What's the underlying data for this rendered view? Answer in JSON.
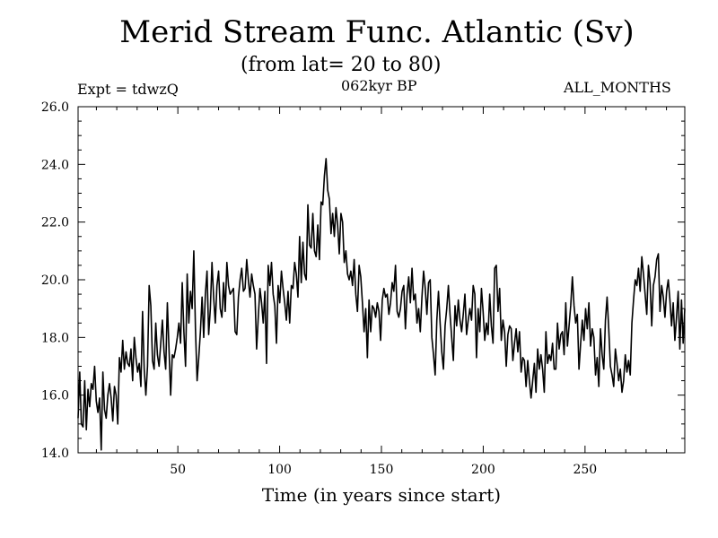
{
  "chart_data": {
    "type": "line",
    "title": "Merid Stream Func. Atlantic (Sv)",
    "subtitle": "(from lat= 20 to 80)",
    "experiment": "Expt = tdwzQ",
    "period": "062kyr BP",
    "months": "ALL_MONTHS",
    "xlabel": "Time (in years since start)",
    "ylabel": "",
    "xlim": [
      1,
      299
    ],
    "ylim": [
      14.0,
      26.0
    ],
    "x_ticks": [
      50,
      100,
      150,
      200,
      250
    ],
    "x_tick_labels": [
      "50",
      "100",
      "150",
      "200",
      "250"
    ],
    "y_ticks": [
      14,
      16,
      18,
      20,
      22,
      24,
      26
    ],
    "y_tick_labels": [
      "14.0",
      "16.0",
      "18.0",
      "20.0",
      "22.0",
      "24.0",
      "26.0"
    ],
    "series": [
      {
        "name": "Merid Stream Func. Atlantic",
        "values": [
          15.2,
          16.8,
          15.0,
          14.9,
          16.5,
          14.8,
          16.2,
          15.6,
          16.4,
          16.2,
          17.0,
          15.8,
          15.4,
          15.9,
          14.1,
          16.8,
          15.5,
          15.2,
          16.0,
          16.4,
          15.9,
          15.1,
          16.3,
          16.0,
          15.0,
          17.3,
          16.8,
          17.9,
          16.9,
          17.5,
          17.1,
          17.0,
          17.6,
          16.5,
          18.0,
          17.3,
          16.8,
          17.1,
          16.3,
          18.9,
          16.9,
          16.0,
          17.0,
          19.8,
          19.1,
          17.2,
          16.9,
          18.5,
          17.4,
          17.0,
          17.8,
          18.6,
          17.5,
          16.9,
          19.2,
          17.6,
          16.0,
          17.4,
          17.3,
          17.6,
          18.0,
          18.5,
          17.8,
          19.9,
          18.2,
          17.0,
          20.2,
          18.5,
          19.6,
          19.0,
          21.0,
          18.3,
          16.5,
          17.3,
          18.2,
          19.4,
          18.0,
          19.5,
          20.3,
          18.1,
          19.0,
          20.6,
          19.4,
          18.5,
          19.8,
          20.3,
          19.0,
          18.7,
          19.9,
          18.9,
          20.6,
          19.8,
          19.5,
          19.6,
          19.7,
          18.2,
          18.1,
          19.4,
          20.0,
          20.4,
          19.6,
          19.7,
          20.7,
          20.0,
          19.4,
          20.2,
          19.8,
          19.5,
          17.6,
          18.7,
          19.7,
          19.2,
          18.5,
          19.6,
          17.1,
          20.5,
          19.8,
          20.6,
          19.5,
          19.1,
          17.8,
          19.8,
          19.2,
          20.3,
          19.7,
          19.2,
          18.6,
          19.6,
          18.5,
          19.8,
          19.7,
          20.6,
          20.2,
          19.4,
          21.5,
          19.9,
          21.3,
          20.2,
          20.0,
          22.6,
          21.2,
          21.1,
          22.3,
          21.0,
          20.8,
          21.9,
          20.7,
          22.7,
          22.6,
          23.6,
          24.2,
          23.1,
          22.8,
          21.6,
          22.3,
          21.5,
          22.5,
          21.9,
          20.9,
          22.3,
          22.0,
          20.6,
          21.0,
          20.2,
          20.0,
          20.3,
          19.8,
          20.7,
          19.5,
          18.9,
          20.5,
          20.1,
          19.2,
          18.2,
          19.0,
          17.3,
          19.3,
          18.2,
          19.1,
          19.0,
          18.7,
          19.2,
          18.9,
          17.9,
          19.3,
          19.7,
          19.4,
          19.5,
          18.8,
          19.2,
          19.9,
          19.6,
          20.5,
          18.9,
          18.7,
          19.0,
          19.6,
          19.8,
          18.3,
          19.5,
          20.1,
          19.2,
          20.4,
          19.3,
          19.5,
          18.5,
          19.0,
          18.2,
          19.4,
          20.3,
          19.7,
          18.8,
          19.9,
          20.0,
          18.0,
          17.4,
          16.7,
          18.6,
          19.6,
          18.5,
          17.5,
          16.9,
          18.4,
          19.0,
          19.8,
          18.8,
          18.0,
          17.2,
          19.1,
          18.4,
          19.3,
          18.6,
          18.2,
          18.8,
          19.5,
          18.1,
          18.6,
          19.0,
          18.6,
          19.8,
          19.5,
          17.3,
          19.0,
          18.2,
          19.7,
          18.9,
          17.9,
          18.5,
          18.1,
          19.5,
          18.4,
          17.8,
          20.4,
          20.5,
          18.9,
          19.7,
          17.9,
          18.6,
          18.2,
          17.0,
          18.1,
          18.4,
          18.3,
          17.2,
          17.8,
          18.3,
          17.5,
          18.2,
          16.8,
          17.3,
          17.2,
          16.3,
          17.2,
          16.5,
          15.9,
          16.5,
          17.1,
          16.1,
          17.6,
          16.9,
          17.4,
          16.9,
          16.1,
          18.2,
          17.1,
          17.4,
          17.2,
          17.8,
          16.9,
          16.9,
          18.5,
          17.6,
          18.1,
          18.2,
          17.4,
          19.2,
          17.7,
          18.4,
          19.1,
          20.1,
          19.1,
          18.5,
          18.8,
          16.9,
          17.8,
          18.6,
          17.9,
          19.0,
          18.3,
          19.2,
          17.7,
          18.3,
          18.0,
          16.7,
          17.3,
          16.3,
          18.3,
          17.4,
          16.9,
          18.6,
          19.4,
          18.3,
          17.0,
          16.7,
          16.3,
          17.6,
          17.1,
          16.5,
          16.9,
          16.1,
          16.5,
          17.4,
          16.8,
          17.2,
          16.7,
          18.5,
          19.3,
          20.0,
          19.8,
          20.4,
          19.6,
          20.8,
          20.2,
          19.5,
          18.8,
          20.5,
          19.9,
          18.4,
          19.8,
          20.1,
          20.7,
          20.9,
          18.9,
          19.8,
          19.4,
          18.7,
          19.6,
          20.0,
          19.3,
          18.4,
          19.2,
          17.9,
          18.7,
          19.6,
          17.6,
          19.3,
          17.8,
          19.0
        ],
        "color": "#000000"
      }
    ]
  }
}
